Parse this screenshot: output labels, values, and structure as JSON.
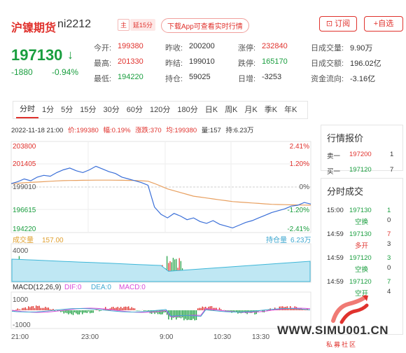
{
  "header": {
    "title": "沪镍期货",
    "code": "ni2212",
    "tag_main": "主",
    "tag_delay": "延15分",
    "download": "下载App可查看实时行情",
    "subscribe": "订阅",
    "favorite": "+自选"
  },
  "quote": {
    "price": "197130",
    "change": "-1880",
    "change_pct": "-0.94%"
  },
  "stats": {
    "open_label": "今开:",
    "open": "199380",
    "high_label": "最高:",
    "high": "201330",
    "low_label": "最低:",
    "low": "194220",
    "prev_close_label": "昨收:",
    "prev_close": "200200",
    "prev_settle_label": "昨结:",
    "prev_settle": "199010",
    "oi_label": "持仓:",
    "oi": "59025",
    "limit_up_label": "涨停:",
    "limit_up": "232840",
    "limit_down_label": "跌停:",
    "limit_down": "165170",
    "daily_add_label": "日增:",
    "daily_add": "-3253",
    "volume_label": "日成交量:",
    "volume": "9.90万",
    "amount_label": "日成交额:",
    "amount": "196.02亿",
    "flow_label": "资金流向:",
    "flow": "-3.16亿"
  },
  "tabs": [
    "分时",
    "1分",
    "5分",
    "15分",
    "30分",
    "60分",
    "120分",
    "180分",
    "日K",
    "周K",
    "月K",
    "季K",
    "年K"
  ],
  "info": {
    "time": "2022-11-18 21:00",
    "price": "价:199380",
    "range": "幅:0.19%",
    "up": "涨跌:370",
    "avg": "均:199380",
    "qty": "量:157",
    "hold": "持:6.23万"
  },
  "chart_data": {
    "type": "line",
    "price_ticks": [
      "203800",
      "201405",
      "199010",
      "196615",
      "194220"
    ],
    "pct_ticks": [
      "2.41%",
      "1.20%",
      "0%",
      "-1.20%",
      "-2.41%"
    ],
    "volume_label": "成交量",
    "volume_value": "157.00",
    "hold_label": "持仓量",
    "hold_value": "6.23万",
    "vol_tick": "4000",
    "macd_label": "MACD(12,26,9)",
    "dif": "DIF:0",
    "dea": "DEA:0",
    "macd": "MACD:0",
    "macd_top": "1000",
    "macd_bottom": "-1000",
    "x_ticks": [
      "21:00",
      "23:00",
      "9:00",
      "10:30",
      "13:30"
    ],
    "ylim": [
      194220,
      203800
    ],
    "price_series": [
      199380,
      199600,
      199900,
      199700,
      200100,
      200300,
      200200,
      200600,
      200900,
      201100,
      200800,
      200600,
      200900,
      201300,
      201000,
      200700,
      200500,
      200100,
      199900,
      199700,
      199500,
      199200,
      196800,
      196000,
      195600,
      196100,
      195800,
      195400,
      195600,
      195200,
      195000,
      195300,
      194900,
      194700,
      194500,
      194800,
      195100,
      195300,
      195600,
      195900,
      196200,
      196400,
      196600,
      196900,
      197000,
      197300,
      197130
    ],
    "avg_series": [
      199380,
      199420,
      199480,
      199520,
      199560,
      199600,
      199640,
      199680,
      199710,
      199730,
      199740,
      199750,
      199760,
      199770,
      199770,
      199770,
      199760,
      199750,
      199740,
      199730,
      199700,
      199650,
      199400,
      199100,
      198800,
      198600,
      198400,
      198200,
      198000,
      197900,
      197800,
      197700,
      197600,
      197500,
      197400,
      197350,
      197300,
      197250,
      197200,
      197150,
      197100,
      197080,
      197060,
      197040,
      197030,
      197020,
      197010
    ]
  },
  "side": {
    "quote_title": "行情报价",
    "sell_label": "卖一",
    "sell_price": "197200",
    "sell_qty": "1",
    "buy_label": "买一",
    "buy_price": "197120",
    "buy_qty": "7",
    "trades_title": "分时成交",
    "trades": [
      {
        "time": "15:00",
        "price": "197130",
        "qty": "1",
        "type": "空换",
        "type_qty": "0"
      },
      {
        "time": "14:59",
        "price": "197130",
        "qty": "7",
        "type": "多开",
        "type_qty": "3"
      },
      {
        "time": "14:59",
        "price": "197120",
        "qty": "3",
        "type": "空换",
        "type_qty": "0"
      },
      {
        "time": "14:59",
        "price": "197120",
        "qty": "7",
        "type": "空开",
        "type_qty": "4"
      }
    ]
  },
  "watermark": {
    "site": "WWW.SIMU001.CN",
    "sub": "私募社区"
  },
  "colors": {
    "up": "#e0322d",
    "down": "#1a9e3f",
    "avg": "#e8a060",
    "price_line": "#3a6fd8"
  }
}
